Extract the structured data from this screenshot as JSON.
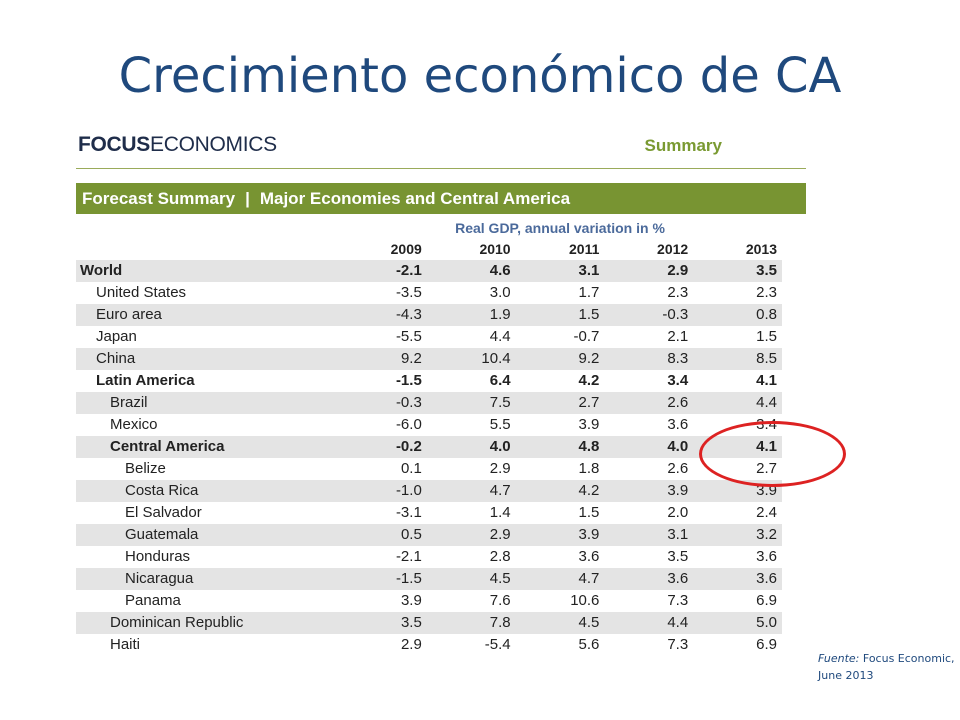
{
  "slide": {
    "title": "Crecimiento económico de CA",
    "source_label": "Fuente:",
    "source_text": "Focus Economic, June 2013"
  },
  "report": {
    "logo_bold": "FOCUS",
    "logo_rest": "ECONOMICS",
    "summary_label": "Summary",
    "banner_left": "Forecast Summary",
    "banner_sep": "|",
    "banner_right": "Major Economies and Central America",
    "units": "Real GDP, annual variation in %",
    "years": [
      "2009",
      "2010",
      "2011",
      "2012",
      "2013"
    ]
  },
  "rows": [
    {
      "label": "World",
      "values": [
        "-2.1",
        "4.6",
        "3.1",
        "2.9",
        "3.5"
      ],
      "level": 0,
      "bold": true,
      "shade": true
    },
    {
      "label": "United States",
      "values": [
        "-3.5",
        "3.0",
        "1.7",
        "2.3",
        "2.3"
      ],
      "level": 1,
      "bold": false,
      "shade": false
    },
    {
      "label": "Euro area",
      "values": [
        "-4.3",
        "1.9",
        "1.5",
        "-0.3",
        "0.8"
      ],
      "level": 1,
      "bold": false,
      "shade": true
    },
    {
      "label": "Japan",
      "values": [
        "-5.5",
        "4.4",
        "-0.7",
        "2.1",
        "1.5"
      ],
      "level": 1,
      "bold": false,
      "shade": false
    },
    {
      "label": "China",
      "values": [
        "9.2",
        "10.4",
        "9.2",
        "8.3",
        "8.5"
      ],
      "level": 1,
      "bold": false,
      "shade": true
    },
    {
      "label": "Latin America",
      "values": [
        "-1.5",
        "6.4",
        "4.2",
        "3.4",
        "4.1"
      ],
      "level": 1,
      "bold": true,
      "shade": false
    },
    {
      "label": "Brazil",
      "values": [
        "-0.3",
        "7.5",
        "2.7",
        "2.6",
        "4.4"
      ],
      "level": 2,
      "bold": false,
      "shade": true
    },
    {
      "label": "Mexico",
      "values": [
        "-6.0",
        "5.5",
        "3.9",
        "3.6",
        "3.4"
      ],
      "level": 2,
      "bold": false,
      "shade": false
    },
    {
      "label": "Central America",
      "values": [
        "-0.2",
        "4.0",
        "4.8",
        "4.0",
        "4.1"
      ],
      "level": 2,
      "bold": true,
      "shade": true
    },
    {
      "label": "Belize",
      "values": [
        "0.1",
        "2.9",
        "1.8",
        "2.6",
        "2.7"
      ],
      "level": 3,
      "bold": false,
      "shade": false
    },
    {
      "label": "Costa Rica",
      "values": [
        "-1.0",
        "4.7",
        "4.2",
        "3.9",
        "3.9"
      ],
      "level": 3,
      "bold": false,
      "shade": true
    },
    {
      "label": "El Salvador",
      "values": [
        "-3.1",
        "1.4",
        "1.5",
        "2.0",
        "2.4"
      ],
      "level": 3,
      "bold": false,
      "shade": false
    },
    {
      "label": "Guatemala",
      "values": [
        "0.5",
        "2.9",
        "3.9",
        "3.1",
        "3.2"
      ],
      "level": 3,
      "bold": false,
      "shade": true
    },
    {
      "label": "Honduras",
      "values": [
        "-2.1",
        "2.8",
        "3.6",
        "3.5",
        "3.6"
      ],
      "level": 3,
      "bold": false,
      "shade": false
    },
    {
      "label": "Nicaragua",
      "values": [
        "-1.5",
        "4.5",
        "4.7",
        "3.6",
        "3.6"
      ],
      "level": 3,
      "bold": false,
      "shade": true
    },
    {
      "label": "Panama",
      "values": [
        "3.9",
        "7.6",
        "10.6",
        "7.3",
        "6.9"
      ],
      "level": 3,
      "bold": false,
      "shade": false
    },
    {
      "label": "Dominican Republic",
      "values": [
        "3.5",
        "7.8",
        "4.5",
        "4.4",
        "5.0"
      ],
      "level": 2,
      "bold": false,
      "shade": true
    },
    {
      "label": "Haiti",
      "values": [
        "2.9",
        "-5.4",
        "5.6",
        "7.3",
        "6.9"
      ],
      "level": 2,
      "bold": false,
      "shade": false
    }
  ]
}
